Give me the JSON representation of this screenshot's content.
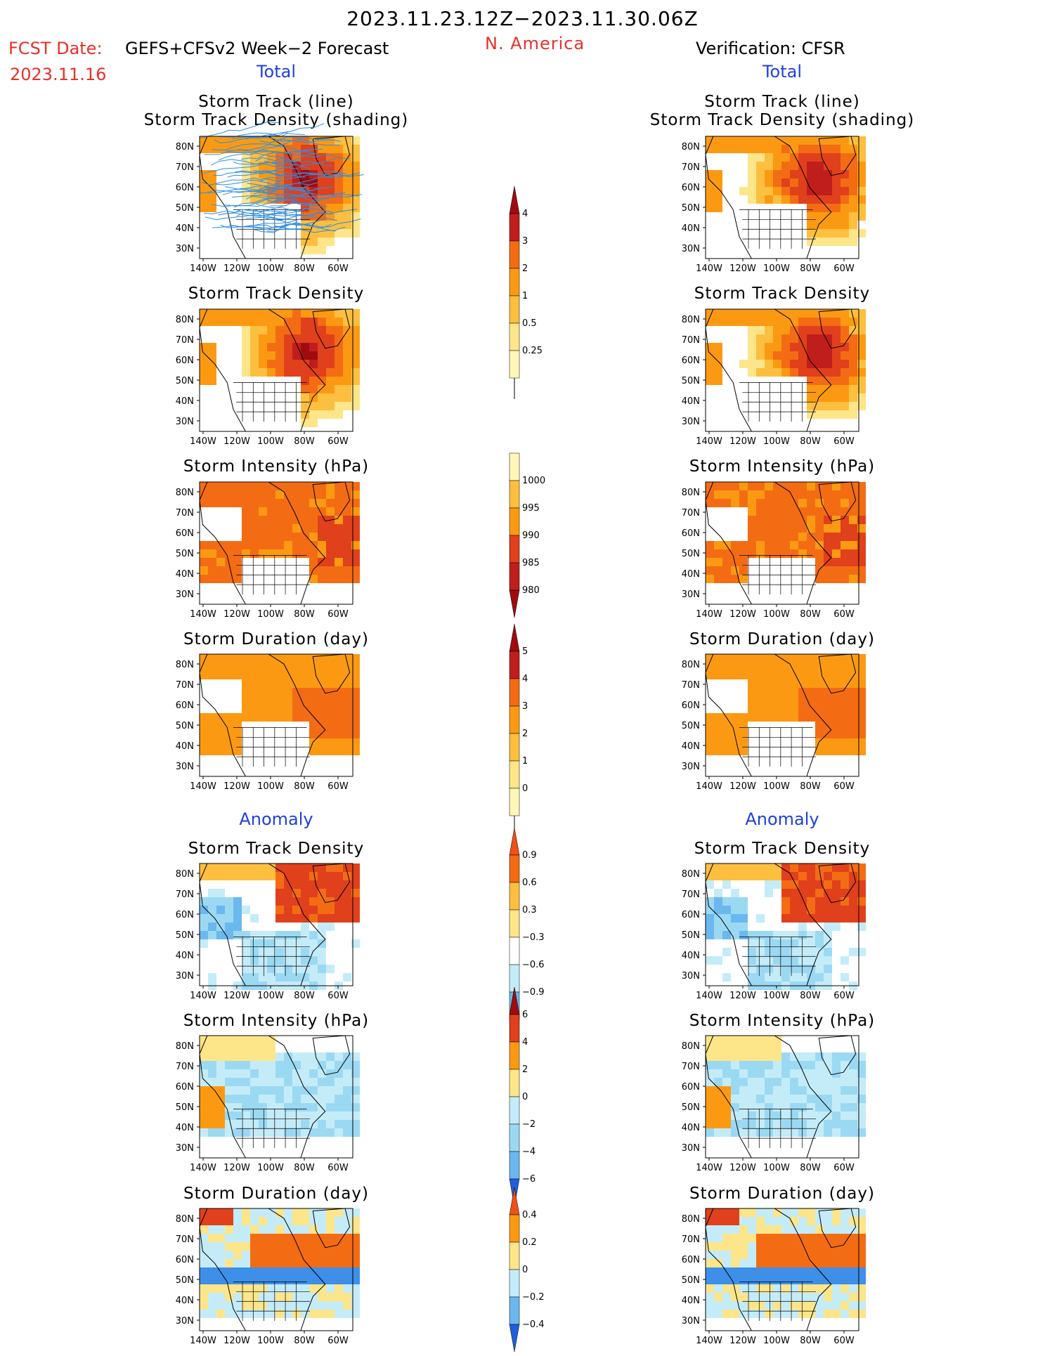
{
  "header": {
    "title": "2023.11.23.12Z−2023.11.30.06Z",
    "fcst_label": "FCST Date:",
    "fcst_model": "GEFS+CFSv2 Week−2 Forecast",
    "fcst_date": "2023.11.16",
    "region": "N. America",
    "verification": "Verification: CFSR"
  },
  "sections": {
    "total": "Total",
    "anomaly": "Anomaly"
  },
  "panel_titles": {
    "track_line_1": "Storm Track (line)",
    "track_line_2": "Storm Track Density (shading)",
    "density": "Storm Track Density",
    "intensity": "Storm Intensity (hPa)",
    "duration": "Storm Duration (day)"
  },
  "axes": {
    "lat_labels": [
      "80N",
      "70N",
      "60N",
      "50N",
      "40N",
      "30N"
    ],
    "lon_labels": [
      "140W",
      "120W",
      "100W",
      "80W",
      "60W"
    ]
  },
  "colorbars": {
    "total_density": [
      "4",
      "3",
      "2",
      "1",
      "0.5",
      "0.25"
    ],
    "total_intensity": [
      "1000",
      "995",
      "990",
      "985",
      "980"
    ],
    "total_duration": [
      "5",
      "4",
      "3",
      "2",
      "1",
      "0"
    ],
    "anom_density": [
      "0.9",
      "0.6",
      "0.3",
      "−0.3",
      "−0.6",
      "−0.9"
    ],
    "anom_intensity": [
      "6",
      "4",
      "2",
      "0",
      "−2",
      "−4",
      "−6"
    ],
    "anom_duration": [
      "0.4",
      "0.2",
      "0",
      "−0.2",
      "−0.4"
    ]
  },
  "palette": {
    "warm": [
      "#fff7b8",
      "#fde58a",
      "#fdbf3f",
      "#fb9a12",
      "#f36c14",
      "#e0401b",
      "#c01e1c",
      "#9e0c10"
    ],
    "cool": [
      "#ffffff",
      "#c4ecf8",
      "#9bd9f3",
      "#6ab8ee",
      "#3d8fe8",
      "#1f5fd8"
    ],
    "track_line": "#2b8fe8"
  }
}
